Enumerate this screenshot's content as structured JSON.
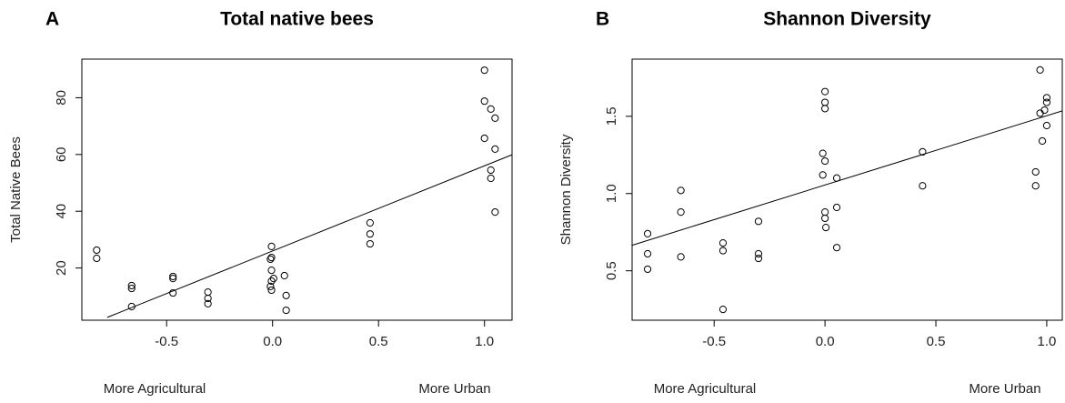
{
  "chart_data": [
    {
      "type": "scatter",
      "panel_label": "A",
      "title": "Total native bees",
      "ylabel": "Total Native Bees",
      "x_left_label": "More Agricultural",
      "x_right_label": "More Urban",
      "color": "#000000",
      "x": [
        -0.83,
        -0.83,
        -0.665,
        -0.665,
        -0.665,
        -0.47,
        -0.47,
        -0.47,
        -0.305,
        -0.305,
        -0.305,
        -0.005,
        -0.005,
        -0.01,
        -0.005,
        0.005,
        -0.005,
        -0.01,
        -0.005,
        0.056,
        0.064,
        0.064,
        0.46,
        0.46,
        0.46,
        1.0,
        1.0,
        1.03,
        1.05,
        1.0,
        1.05,
        1.03,
        1.03,
        1.05
      ],
      "y": [
        26.3,
        23.4,
        13.8,
        12.8,
        6.4,
        17,
        16.3,
        11.2,
        11.5,
        9.3,
        7.4,
        27.6,
        23.7,
        23.1,
        19.2,
        16.3,
        15.4,
        13.5,
        12.2,
        17.3,
        10.3,
        5.1,
        35.9,
        32,
        28.5,
        89.7,
        78.8,
        76,
        72.8,
        65.7,
        61.9,
        54.5,
        51.6,
        39.7
      ],
      "fit_line": {
        "x": [
          -0.78,
          1.13
        ],
        "y": [
          2.6,
          59.9
        ]
      },
      "xlim": [
        -0.9,
        1.13
      ],
      "ylim": [
        1.6,
        93.6
      ],
      "xticks": [
        -0.5,
        {
          "value": 0,
          "label": "0.0"
        },
        0.5,
        {
          "value": 1,
          "label": "1.0"
        }
      ],
      "yticks": [
        20,
        40,
        60,
        80
      ]
    },
    {
      "type": "scatter",
      "panel_label": "B",
      "title": "Shannon Diversity",
      "ylabel": "Shannon Diversity",
      "x_left_label": "More Agricultural",
      "x_right_label": "More Urban",
      "color": "#000000",
      "x": [
        -0.8,
        -0.8,
        -0.8,
        -0.65,
        -0.65,
        -0.65,
        -0.46,
        -0.46,
        -0.46,
        -0.3,
        -0.3,
        -0.3,
        0,
        0,
        0,
        -0.01,
        0,
        -0.01,
        0,
        0,
        0.004,
        0.053,
        0.053,
        0.053,
        0.44,
        0.44,
        0.97,
        0.99,
        1.0,
        1.0,
        0.97,
        1.0,
        0.98,
        0.95,
        0.95
      ],
      "y": [
        0.74,
        0.61,
        0.51,
        1.02,
        0.88,
        0.59,
        0.68,
        0.63,
        0.25,
        0.82,
        0.61,
        0.58,
        1.66,
        1.59,
        1.55,
        1.26,
        1.21,
        1.12,
        0.88,
        0.84,
        0.78,
        1.1,
        0.91,
        0.65,
        1.27,
        1.05,
        1.52,
        1.54,
        1.62,
        1.59,
        1.8,
        1.44,
        1.34,
        1.14,
        1.05
      ],
      "fit_line": {
        "x": [
          -0.87,
          1.07
        ],
        "y": [
          0.665,
          1.535
        ]
      },
      "xlim": [
        -0.87,
        1.07
      ],
      "ylim": [
        0.18,
        1.87
      ],
      "xticks": [
        -0.5,
        {
          "value": 0,
          "label": "0.0"
        },
        0.5,
        {
          "value": 1,
          "label": "1.0"
        }
      ],
      "yticks": [
        {
          "value": 0.5,
          "label": "0.5"
        },
        {
          "value": 1,
          "label": "1.0"
        },
        {
          "value": 1.5,
          "label": "1.5"
        }
      ]
    }
  ]
}
